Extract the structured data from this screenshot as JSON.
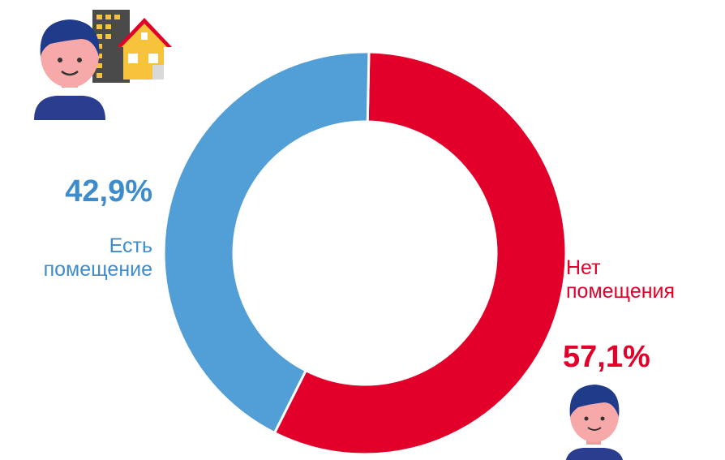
{
  "colors": {
    "have": "#519fd6",
    "none": "#e2002a",
    "text_have": "#3e8ccb",
    "text_none": "#e2002a"
  },
  "icons": {
    "person_with_house": "person-with-house-icon",
    "person": "person-icon"
  },
  "chart_data": {
    "type": "pie",
    "style": "donut",
    "start_angle_deg": 0,
    "slices": [
      {
        "label_lines": [
          "Нет",
          "помещения"
        ],
        "value": 57.1,
        "value_label": "57,1%",
        "color": "#e2002a"
      },
      {
        "label_lines": [
          "Есть",
          "помещение"
        ],
        "value": 42.9,
        "value_label": "42,9%",
        "color": "#519fd6"
      }
    ]
  }
}
